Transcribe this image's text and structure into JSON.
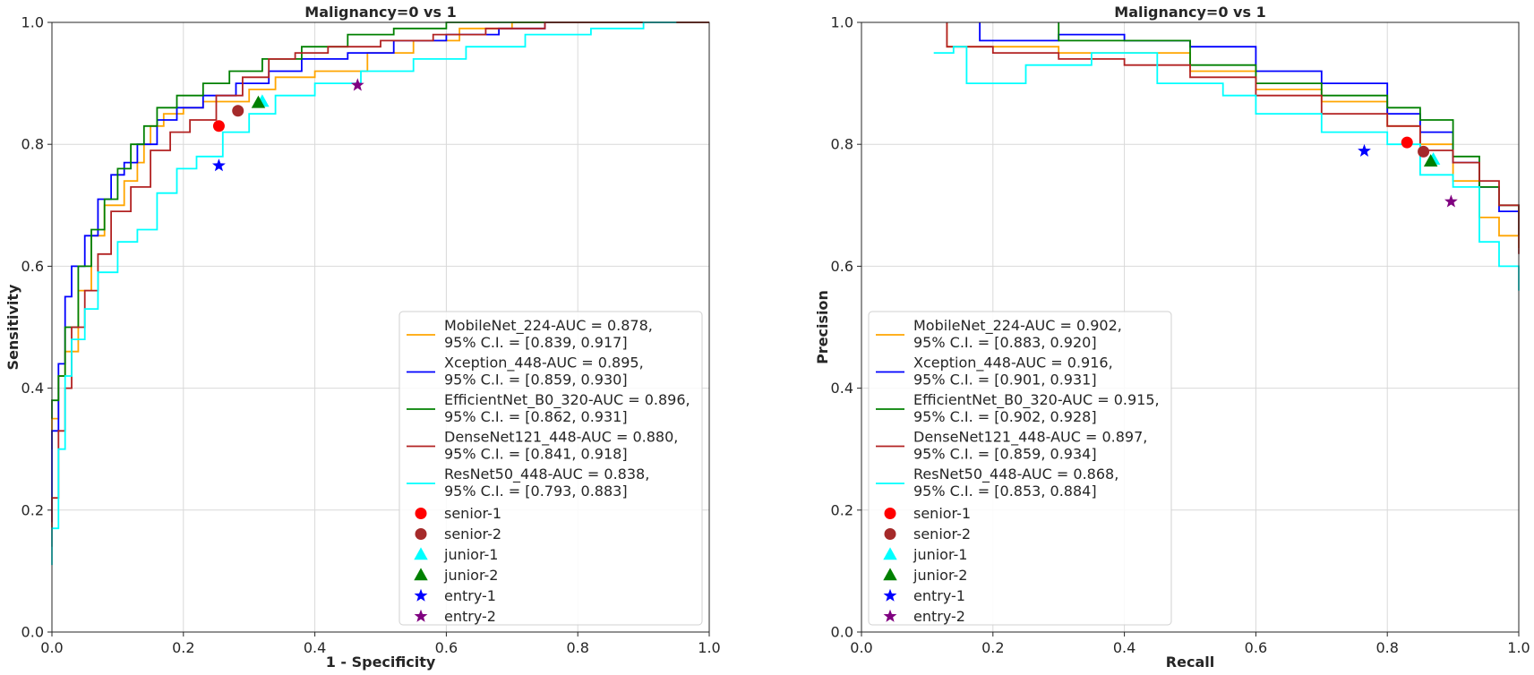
{
  "chart_data": [
    {
      "type": "line",
      "title": "Malignancy=0 vs 1",
      "xlabel": "1 - Specificity",
      "ylabel": "Sensitivity",
      "xlim": [
        0,
        1
      ],
      "ylim": [
        0,
        1
      ],
      "xticks": [
        "0.0",
        "0.2",
        "0.4",
        "0.6",
        "0.8",
        "1.0"
      ],
      "yticks": [
        "0.0",
        "0.2",
        "0.4",
        "0.6",
        "0.8",
        "1.0"
      ],
      "grid": true,
      "legend_position": "lower-right",
      "series": [
        {
          "name": "MobileNet_224-AUC = 0.878,",
          "ci": "95% C.I. = [0.839, 0.917]",
          "color": "#ffa500",
          "points": [
            [
              0,
              0.3
            ],
            [
              0.01,
              0.35
            ],
            [
              0.02,
              0.42
            ],
            [
              0.04,
              0.46
            ],
            [
              0.06,
              0.56
            ],
            [
              0.08,
              0.65
            ],
            [
              0.11,
              0.7
            ],
            [
              0.13,
              0.74
            ],
            [
              0.14,
              0.77
            ],
            [
              0.15,
              0.8
            ],
            [
              0.17,
              0.83
            ],
            [
              0.2,
              0.85
            ],
            [
              0.23,
              0.86
            ],
            [
              0.27,
              0.87
            ],
            [
              0.3,
              0.87
            ],
            [
              0.34,
              0.89
            ],
            [
              0.4,
              0.91
            ],
            [
              0.48,
              0.92
            ],
            [
              0.55,
              0.95
            ],
            [
              0.62,
              0.97
            ],
            [
              0.7,
              0.99
            ],
            [
              0.76,
              1.0
            ],
            [
              1.0,
              1.0
            ]
          ]
        },
        {
          "name": "Xception_448-AUC = 0.895,",
          "ci": "95% C.I. = [0.859, 0.930]",
          "color": "#0000ff",
          "points": [
            [
              0,
              0.18
            ],
            [
              0.01,
              0.33
            ],
            [
              0.02,
              0.44
            ],
            [
              0.03,
              0.55
            ],
            [
              0.05,
              0.6
            ],
            [
              0.07,
              0.65
            ],
            [
              0.09,
              0.71
            ],
            [
              0.11,
              0.75
            ],
            [
              0.13,
              0.77
            ],
            [
              0.16,
              0.8
            ],
            [
              0.19,
              0.84
            ],
            [
              0.23,
              0.86
            ],
            [
              0.28,
              0.88
            ],
            [
              0.33,
              0.9
            ],
            [
              0.38,
              0.92
            ],
            [
              0.45,
              0.94
            ],
            [
              0.52,
              0.95
            ],
            [
              0.6,
              0.97
            ],
            [
              0.68,
              0.98
            ],
            [
              0.75,
              0.99
            ],
            [
              0.87,
              1.0
            ],
            [
              1.0,
              1.0
            ]
          ]
        },
        {
          "name": "EfficientNet_B0_320-AUC = 0.896,",
          "ci": "95% C.I. = [0.862, 0.931]",
          "color": "#008000",
          "points": [
            [
              0,
              0.35
            ],
            [
              0.01,
              0.38
            ],
            [
              0.02,
              0.42
            ],
            [
              0.04,
              0.5
            ],
            [
              0.06,
              0.6
            ],
            [
              0.08,
              0.66
            ],
            [
              0.1,
              0.71
            ],
            [
              0.12,
              0.76
            ],
            [
              0.14,
              0.8
            ],
            [
              0.16,
              0.83
            ],
            [
              0.19,
              0.86
            ],
            [
              0.23,
              0.88
            ],
            [
              0.27,
              0.9
            ],
            [
              0.32,
              0.92
            ],
            [
              0.38,
              0.94
            ],
            [
              0.45,
              0.96
            ],
            [
              0.52,
              0.98
            ],
            [
              0.6,
              0.99
            ],
            [
              0.68,
              1.0
            ],
            [
              1.0,
              1.0
            ]
          ]
        },
        {
          "name": "DenseNet121_448-AUC = 0.880,",
          "ci": "95% C.I. = [0.841, 0.918]",
          "color": "#b22222",
          "points": [
            [
              0,
              0.14
            ],
            [
              0.01,
              0.22
            ],
            [
              0.02,
              0.33
            ],
            [
              0.03,
              0.4
            ],
            [
              0.05,
              0.5
            ],
            [
              0.07,
              0.56
            ],
            [
              0.09,
              0.62
            ],
            [
              0.12,
              0.69
            ],
            [
              0.15,
              0.73
            ],
            [
              0.18,
              0.79
            ],
            [
              0.21,
              0.82
            ],
            [
              0.25,
              0.84
            ],
            [
              0.29,
              0.88
            ],
            [
              0.33,
              0.91
            ],
            [
              0.37,
              0.94
            ],
            [
              0.42,
              0.95
            ],
            [
              0.5,
              0.96
            ],
            [
              0.58,
              0.97
            ],
            [
              0.66,
              0.98
            ],
            [
              0.75,
              0.99
            ],
            [
              0.85,
              1.0
            ],
            [
              1.0,
              1.0
            ]
          ]
        },
        {
          "name": "ResNet50_448-AUC = 0.838,",
          "ci": "95% C.I. = [0.793, 0.883]",
          "color": "#00ffff",
          "points": [
            [
              0,
              0.11
            ],
            [
              0.01,
              0.17
            ],
            [
              0.02,
              0.3
            ],
            [
              0.03,
              0.42
            ],
            [
              0.05,
              0.48
            ],
            [
              0.07,
              0.53
            ],
            [
              0.1,
              0.59
            ],
            [
              0.13,
              0.64
            ],
            [
              0.16,
              0.66
            ],
            [
              0.19,
              0.72
            ],
            [
              0.22,
              0.76
            ],
            [
              0.26,
              0.78
            ],
            [
              0.3,
              0.82
            ],
            [
              0.34,
              0.85
            ],
            [
              0.4,
              0.88
            ],
            [
              0.47,
              0.9
            ],
            [
              0.55,
              0.92
            ],
            [
              0.63,
              0.94
            ],
            [
              0.72,
              0.96
            ],
            [
              0.82,
              0.98
            ],
            [
              0.9,
              0.99
            ],
            [
              0.95,
              1.0
            ]
          ]
        }
      ],
      "points": [
        {
          "name": "senior-1",
          "marker": "circle",
          "color": "#ff0000",
          "x": 0.254,
          "y": 0.83
        },
        {
          "name": "senior-2",
          "marker": "circle",
          "color": "#a52a2a",
          "x": 0.283,
          "y": 0.855
        },
        {
          "name": "junior-1",
          "marker": "triangle",
          "color": "#00ffff",
          "x": 0.32,
          "y": 0.87
        },
        {
          "name": "junior-2",
          "marker": "triangle",
          "color": "#008000",
          "x": 0.314,
          "y": 0.868
        },
        {
          "name": "entry-1",
          "marker": "star",
          "color": "#0000ff",
          "x": 0.254,
          "y": 0.765
        },
        {
          "name": "entry-2",
          "marker": "star",
          "color": "#800080",
          "x": 0.465,
          "y": 0.897
        }
      ]
    },
    {
      "type": "line",
      "title": "Malignancy=0 vs 1",
      "xlabel": "Recall",
      "ylabel": "Precision",
      "xlim": [
        0,
        1
      ],
      "ylim": [
        0,
        1
      ],
      "xticks": [
        "0.0",
        "0.2",
        "0.4",
        "0.6",
        "0.8",
        "1.0"
      ],
      "yticks": [
        "0.0",
        "0.2",
        "0.4",
        "0.6",
        "0.8",
        "1.0"
      ],
      "grid": true,
      "legend_position": "lower-left",
      "series": [
        {
          "name": "MobileNet_224-AUC = 0.902,",
          "ci": "95% C.I. = [0.883, 0.920]",
          "color": "#ffa500",
          "points": [
            [
              0.13,
              1.0
            ],
            [
              0.13,
              0.96
            ],
            [
              0.2,
              0.96
            ],
            [
              0.3,
              0.95
            ],
            [
              0.4,
              0.95
            ],
            [
              0.5,
              0.92
            ],
            [
              0.6,
              0.89
            ],
            [
              0.7,
              0.87
            ],
            [
              0.8,
              0.83
            ],
            [
              0.85,
              0.8
            ],
            [
              0.9,
              0.74
            ],
            [
              0.94,
              0.68
            ],
            [
              0.97,
              0.65
            ],
            [
              1.0,
              0.63
            ]
          ]
        },
        {
          "name": "Xception_448-AUC = 0.916,",
          "ci": "95% C.I. = [0.901, 0.931]",
          "color": "#0000ff",
          "points": [
            [
              0.18,
              1.0
            ],
            [
              0.18,
              0.97
            ],
            [
              0.3,
              0.98
            ],
            [
              0.4,
              0.97
            ],
            [
              0.5,
              0.96
            ],
            [
              0.6,
              0.92
            ],
            [
              0.7,
              0.9
            ],
            [
              0.8,
              0.85
            ],
            [
              0.85,
              0.82
            ],
            [
              0.9,
              0.77
            ],
            [
              0.94,
              0.73
            ],
            [
              0.97,
              0.69
            ],
            [
              1.0,
              0.66
            ]
          ]
        },
        {
          "name": "EfficientNet_B0_320-AUC = 0.915,",
          "ci": "95% C.I. = [0.902, 0.928]",
          "color": "#008000",
          "points": [
            [
              0.3,
              1.0
            ],
            [
              0.3,
              0.97
            ],
            [
              0.4,
              0.97
            ],
            [
              0.5,
              0.93
            ],
            [
              0.6,
              0.9
            ],
            [
              0.7,
              0.88
            ],
            [
              0.8,
              0.86
            ],
            [
              0.85,
              0.84
            ],
            [
              0.9,
              0.78
            ],
            [
              0.94,
              0.73
            ],
            [
              0.97,
              0.7
            ],
            [
              1.0,
              0.65
            ]
          ]
        },
        {
          "name": "DenseNet121_448-AUC = 0.897,",
          "ci": "95% C.I. = [0.859, 0.934]",
          "color": "#b22222",
          "points": [
            [
              0.13,
              1.0
            ],
            [
              0.13,
              0.96
            ],
            [
              0.2,
              0.95
            ],
            [
              0.3,
              0.94
            ],
            [
              0.4,
              0.93
            ],
            [
              0.5,
              0.91
            ],
            [
              0.6,
              0.88
            ],
            [
              0.7,
              0.85
            ],
            [
              0.8,
              0.83
            ],
            [
              0.85,
              0.79
            ],
            [
              0.9,
              0.77
            ],
            [
              0.94,
              0.74
            ],
            [
              0.97,
              0.7
            ],
            [
              1.0,
              0.62
            ]
          ]
        },
        {
          "name": "ResNet50_448-AUC = 0.868,",
          "ci": "95% C.I. = [0.853, 0.884]",
          "color": "#00ffff",
          "points": [
            [
              0.11,
              0.95
            ],
            [
              0.14,
              0.96
            ],
            [
              0.16,
              0.9
            ],
            [
              0.25,
              0.93
            ],
            [
              0.35,
              0.95
            ],
            [
              0.45,
              0.9
            ],
            [
              0.55,
              0.88
            ],
            [
              0.6,
              0.85
            ],
            [
              0.7,
              0.82
            ],
            [
              0.8,
              0.8
            ],
            [
              0.85,
              0.75
            ],
            [
              0.9,
              0.73
            ],
            [
              0.94,
              0.64
            ],
            [
              0.97,
              0.6
            ],
            [
              1.0,
              0.56
            ]
          ]
        }
      ],
      "points": [
        {
          "name": "senior-1",
          "marker": "circle",
          "color": "#ff0000",
          "x": 0.83,
          "y": 0.803
        },
        {
          "name": "senior-2",
          "marker": "circle",
          "color": "#a52a2a",
          "x": 0.855,
          "y": 0.788
        },
        {
          "name": "junior-1",
          "marker": "triangle",
          "color": "#00ffff",
          "x": 0.87,
          "y": 0.775
        },
        {
          "name": "junior-2",
          "marker": "triangle",
          "color": "#008000",
          "x": 0.866,
          "y": 0.772
        },
        {
          "name": "entry-1",
          "marker": "star",
          "color": "#0000ff",
          "x": 0.765,
          "y": 0.789
        },
        {
          "name": "entry-2",
          "marker": "star",
          "color": "#800080",
          "x": 0.897,
          "y": 0.706
        }
      ]
    }
  ]
}
